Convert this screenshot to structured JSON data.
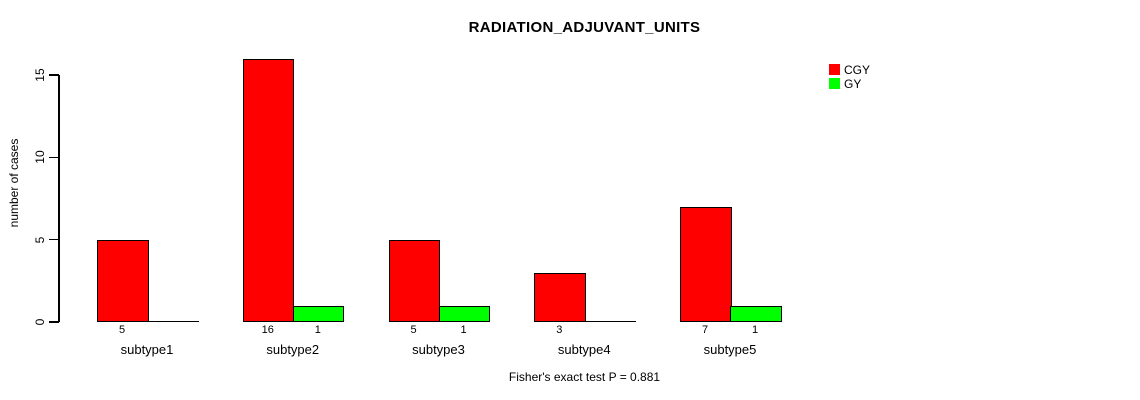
{
  "chart_data": {
    "type": "bar",
    "title": "RADIATION_ADJUVANT_UNITS",
    "xlabel": "",
    "ylabel": "number of cases",
    "categories": [
      "subtype1",
      "subtype2",
      "subtype3",
      "subtype4",
      "subtype5"
    ],
    "series": [
      {
        "name": "CGY",
        "color": "#FF0000",
        "values": [
          5,
          16,
          5,
          3,
          7
        ]
      },
      {
        "name": "GY",
        "color": "#00FF00",
        "values": [
          0,
          1,
          1,
          0,
          1
        ]
      }
    ],
    "bar_value_labels": [
      [
        "5",
        "",
        "16",
        "1",
        "5",
        "1",
        "3",
        "",
        "7",
        "1"
      ]
    ],
    "ylim": [
      0,
      16
    ],
    "yticks": [
      0,
      5,
      10,
      15
    ],
    "grid": false,
    "legend_position": "top-right",
    "annotation": "Fisher's exact test P = 0.881"
  }
}
